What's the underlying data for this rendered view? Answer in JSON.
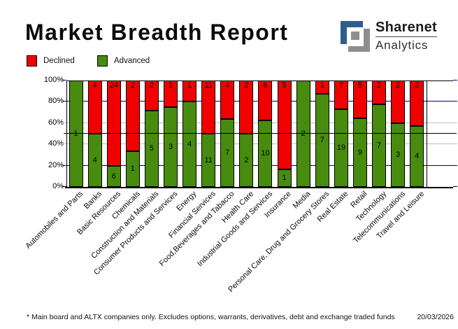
{
  "header": {
    "title": "Market Breadth Report"
  },
  "logo": {
    "brand": "Sharenet",
    "sub": "Analytics",
    "blue": "#2d5f8d",
    "gray": "#8e8e8e"
  },
  "legend": [
    {
      "label": "Declined",
      "color": "#f20000"
    },
    {
      "label": "Advanced",
      "color": "#478c0e"
    }
  ],
  "chart_data": {
    "type": "bar",
    "stacked": true,
    "normalized": "percent",
    "title": "Market Breadth Report",
    "xlabel": "",
    "ylabel": "",
    "ylim": [
      0,
      100
    ],
    "y_ticks": [
      "0%",
      "20%",
      "40%",
      "60%",
      "80%",
      "100%"
    ],
    "legend_position": "top-left",
    "midline_percent": 50,
    "gridlines": [
      {
        "pct": 20,
        "color": "#000080"
      },
      {
        "pct": 40,
        "color": "#c0c0c0"
      },
      {
        "pct": 60,
        "color": "#c0c0c0"
      },
      {
        "pct": 80,
        "color": "#000080"
      }
    ],
    "tick_colors": {
      "0": "#000000",
      "20": "#000080",
      "40": "#c0c0c0",
      "60": "#c0c0c0",
      "80": "#000080",
      "100": "#000080"
    },
    "categories": [
      "Automobiles and Parts",
      "Banks",
      "Basic Resources",
      "Chemicals",
      "Construction and Materials",
      "Consumer Products and Services",
      "Energy",
      "Financial Services",
      "Food,Beverages and Tabacco",
      "Health Care",
      "Industrial Goods and Services",
      "Insurance",
      "Media",
      "Personal Care, Drug and Grocery Stores",
      "Real Estate",
      "Retail",
      "Technology",
      "Telecommunications",
      "Travel and Leisure"
    ],
    "series": [
      {
        "name": "Declined",
        "color": "#f20000",
        "values": [
          0,
          4,
          24,
          2,
          2,
          1,
          1,
          11,
          4,
          2,
          6,
          5,
          0,
          1,
          7,
          5,
          2,
          2,
          3
        ]
      },
      {
        "name": "Advanced",
        "color": "#478c0e",
        "values": [
          1,
          4,
          6,
          1,
          5,
          3,
          4,
          11,
          7,
          2,
          10,
          1,
          2,
          7,
          19,
          9,
          7,
          3,
          4
        ]
      }
    ]
  },
  "footer": {
    "note": "* Main board and ALTX companies only. Excludes options, warrants, derivatives, debt and exchange traded funds",
    "date": "20/03/2026"
  }
}
